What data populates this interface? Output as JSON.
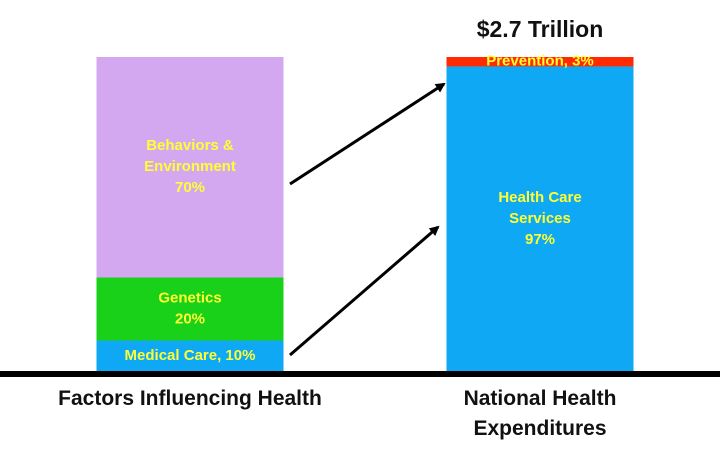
{
  "chart_data": {
    "type": "stacked_bar",
    "title": "$2.7 Trillion",
    "categories": [
      "Factors Influencing Health",
      "National Health Expenditures"
    ],
    "label_color": "#ffff33",
    "bars": [
      {
        "segments": [
          {
            "label": [
              "Medical Care, 10%"
            ],
            "value": 10,
            "color": "#0fa8f5"
          },
          {
            "label": [
              "Genetics",
              "20%"
            ],
            "value": 20,
            "color": "#19d119"
          },
          {
            "label": [
              "Behaviors &",
              "Environment",
              "70%"
            ],
            "value": 70,
            "color": "#d4a8f0"
          }
        ]
      },
      {
        "segments": [
          {
            "label": [
              "Health Care",
              "Services",
              "97%"
            ],
            "value": 97,
            "color": "#0fa8f5"
          },
          {
            "label": [
              "Prevention, 3%"
            ],
            "value": 3,
            "color": "#ff2a00"
          }
        ]
      }
    ]
  }
}
